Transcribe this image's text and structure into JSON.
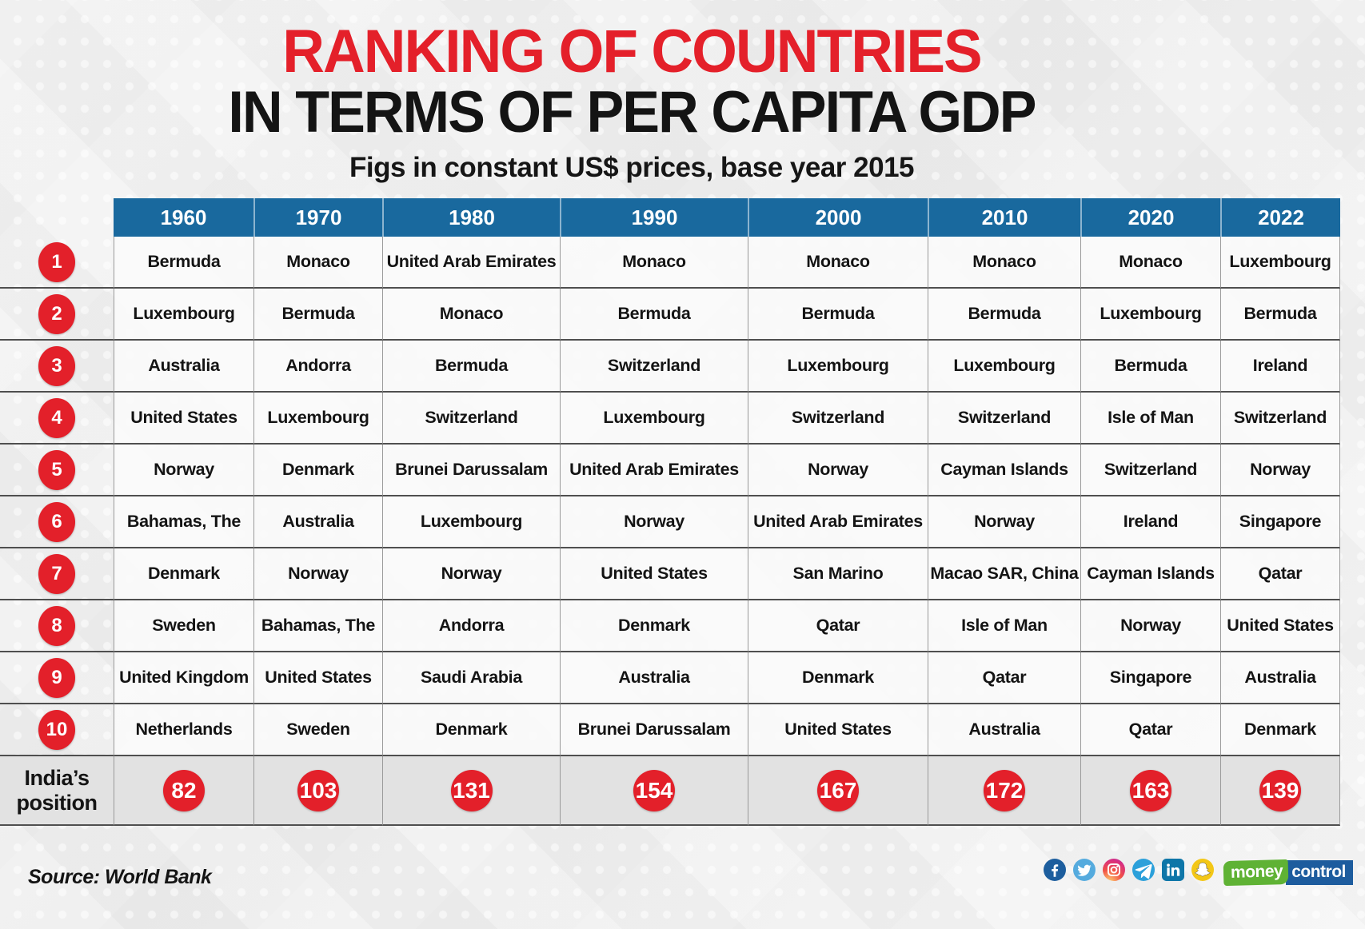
{
  "title": {
    "line1": "RANKING OF COUNTRIES",
    "line2": "IN TERMS OF PER CAPITA GDP",
    "subtitle": "Figs in constant US$ prices, base year 2015"
  },
  "chart_data": {
    "type": "table",
    "title": "Ranking of countries in terms of per capita GDP",
    "subtitle": "Figs in constant US$ prices, base year 2015",
    "columns": [
      "1960",
      "1970",
      "1980",
      "1990",
      "2000",
      "2010",
      "2020",
      "2022"
    ],
    "row_labels": [
      "1",
      "2",
      "3",
      "4",
      "5",
      "6",
      "7",
      "8",
      "9",
      "10",
      "India's position"
    ],
    "rows": [
      [
        "Bermuda",
        "Monaco",
        "United Arab Emirates",
        "Monaco",
        "Monaco",
        "Monaco",
        "Monaco",
        "Luxembourg"
      ],
      [
        "Luxembourg",
        "Bermuda",
        "Monaco",
        "Bermuda",
        "Bermuda",
        "Bermuda",
        "Luxembourg",
        "Bermuda"
      ],
      [
        "Australia",
        "Andorra",
        "Bermuda",
        "Switzerland",
        "Luxembourg",
        "Luxembourg",
        "Bermuda",
        "Ireland"
      ],
      [
        "United States",
        "Luxembourg",
        "Switzerland",
        "Luxembourg",
        "Switzerland",
        "Switzerland",
        "Isle of Man",
        "Switzerland"
      ],
      [
        "Norway",
        "Denmark",
        "Brunei Darussalam",
        "United Arab Emirates",
        "Norway",
        "Cayman Islands",
        "Switzerland",
        "Norway"
      ],
      [
        "Bahamas, The",
        "Australia",
        "Luxembourg",
        "Norway",
        "United Arab Emirates",
        "Norway",
        "Ireland",
        "Singapore"
      ],
      [
        "Denmark",
        "Norway",
        "Norway",
        "United States",
        "San Marino",
        "Macao SAR, China",
        "Cayman Islands",
        "Qatar"
      ],
      [
        "Sweden",
        "Bahamas, The",
        "Andorra",
        "Denmark",
        "Qatar",
        "Isle of Man",
        "Norway",
        "United States"
      ],
      [
        "United Kingdom",
        "United States",
        "Saudi Arabia",
        "Australia",
        "Denmark",
        "Qatar",
        "Singapore",
        "Australia"
      ],
      [
        "Netherlands",
        "Sweden",
        "Denmark",
        "Brunei Darussalam",
        "United States",
        "Australia",
        "Qatar",
        "Denmark"
      ]
    ],
    "india_positions": [
      82,
      103,
      131,
      154,
      167,
      172,
      163,
      139
    ]
  },
  "table": {
    "years": [
      "1960",
      "1970",
      "1980",
      "1990",
      "2000",
      "2010",
      "2020",
      "2022"
    ],
    "rows": [
      {
        "rank": "1",
        "countries": [
          "Bermuda",
          "Monaco",
          "United Arab Emirates",
          "Monaco",
          "Monaco",
          "Monaco",
          "Monaco",
          "Luxembourg"
        ]
      },
      {
        "rank": "2",
        "countries": [
          "Luxembourg",
          "Bermuda",
          "Monaco",
          "Bermuda",
          "Bermuda",
          "Bermuda",
          "Luxembourg",
          "Bermuda"
        ]
      },
      {
        "rank": "3",
        "countries": [
          "Australia",
          "Andorra",
          "Bermuda",
          "Switzerland",
          "Luxembourg",
          "Luxembourg",
          "Bermuda",
          "Ireland"
        ]
      },
      {
        "rank": "4",
        "countries": [
          "United States",
          "Luxembourg",
          "Switzerland",
          "Luxembourg",
          "Switzerland",
          "Switzerland",
          "Isle of Man",
          "Switzerland"
        ]
      },
      {
        "rank": "5",
        "countries": [
          "Norway",
          "Denmark",
          "Brunei Darussalam",
          "United Arab Emirates",
          "Norway",
          "Cayman Islands",
          "Switzerland",
          "Norway"
        ]
      },
      {
        "rank": "6",
        "countries": [
          "Bahamas, The",
          "Australia",
          "Luxembourg",
          "Norway",
          "United Arab Emirates",
          "Norway",
          "Ireland",
          "Singapore"
        ]
      },
      {
        "rank": "7",
        "countries": [
          "Denmark",
          "Norway",
          "Norway",
          "United States",
          "San Marino",
          "Macao SAR, China",
          "Cayman Islands",
          "Qatar"
        ]
      },
      {
        "rank": "8",
        "countries": [
          "Sweden",
          "Bahamas, The",
          "Andorra",
          "Denmark",
          "Qatar",
          "Isle of Man",
          "Norway",
          "United States"
        ]
      },
      {
        "rank": "9",
        "countries": [
          "United Kingdom",
          "United States",
          "Saudi Arabia",
          "Australia",
          "Denmark",
          "Qatar",
          "Singapore",
          "Australia"
        ]
      },
      {
        "rank": "10",
        "countries": [
          "Netherlands",
          "Sweden",
          "Denmark",
          "Brunei Darussalam",
          "United States",
          "Australia",
          "Qatar",
          "Denmark"
        ]
      }
    ],
    "india": {
      "label": "India’s position",
      "positions": [
        "82",
        "103",
        "131",
        "154",
        "167",
        "172",
        "163",
        "139"
      ]
    }
  },
  "footer": {
    "source": "Source: World Bank",
    "social_icons": [
      "facebook-icon",
      "twitter-icon",
      "instagram-icon",
      "telegram-icon",
      "linkedin-icon",
      "snapchat-icon"
    ],
    "logo": {
      "part1": "money",
      "part2": "control"
    }
  },
  "colors": {
    "accent_red": "#e3202a",
    "header_blue": "#19699e",
    "india_row_gray": "#e2e2e2",
    "logo_green": "#5fb234",
    "logo_blue": "#1d5c9e"
  }
}
